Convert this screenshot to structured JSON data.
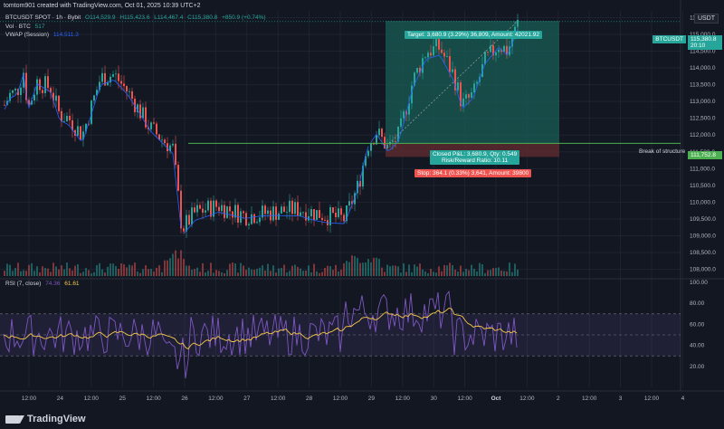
{
  "header": {
    "author_line": "tomtom901 created with TradingView.com, Oct 01, 2025 10:39 UTC+2"
  },
  "legend": {
    "symbol": "BTCUSDT SPOT · 1h · Bybit",
    "open": "O114,529.9",
    "high": "H115,423.6",
    "low": "L114,467.4",
    "close": "C115,380.8",
    "change": "+850.9 (+0.74%)",
    "vol_label": "Vol · BTC",
    "vol_value": "517",
    "vwap_label": "VWAP (Session)",
    "vwap_value": "114,511.3"
  },
  "rsi_legend": {
    "label": "RSI (7, close)",
    "value1": "74.36",
    "value2": "61.61"
  },
  "currency_button": "USDT",
  "price_axis": [
    "115,500.0",
    "115,000.0",
    "114,500.0",
    "114,000.0",
    "113,500.0",
    "113,000.0",
    "112,500.0",
    "112,000.0",
    "111,500.0",
    "111,000.0",
    "110,500.0",
    "110,000.0",
    "109,500.0",
    "109,000.0",
    "108,500.0",
    "108,000.0"
  ],
  "rsi_axis": [
    "100.00",
    "80.00",
    "60.00",
    "40.00",
    "20.00"
  ],
  "time_axis": [
    "12:00",
    "24",
    "12:00",
    "25",
    "12:00",
    "26",
    "12:00",
    "27",
    "12:00",
    "28",
    "12:00",
    "29",
    "12:00",
    "30",
    "12:00",
    "Oct",
    "12:00",
    "2",
    "12:00",
    "3",
    "12:00",
    "4"
  ],
  "tags": {
    "symbol_tag": "BTCUSDT",
    "last_price": "115,380.8",
    "countdown": "20:10",
    "bos_price": "111,752.8"
  },
  "position": {
    "target": "Target: 3,680.9 (3.29%) 36,809, Amount: 42021.92",
    "closed": "Closed P&L: 3,680.9, Qty: 0.549",
    "rr": "Risk/Reward Ratio: 10.11",
    "stop": "Stop: 364.1 (0.33%) 3,641, Amount: 39800"
  },
  "break_of_structure": "Break of structure",
  "branding": "TradingView",
  "colors": {
    "up": "#26a69a",
    "down": "#ef5350",
    "vwap": "#2962ff",
    "rsi": "#7e57c2",
    "rsi_ma": "#f7c948",
    "bos": "#4caf50",
    "target_zone": "#1a5e55",
    "stop_zone": "#5e2a30"
  },
  "chart_data": {
    "type": "candlestick",
    "ylim": [
      107800,
      115700
    ],
    "rsi_ylim": [
      0,
      100
    ],
    "rsi_levels": [
      70,
      50,
      30
    ],
    "break_of_structure_level": 111752.8,
    "candles": []
  }
}
